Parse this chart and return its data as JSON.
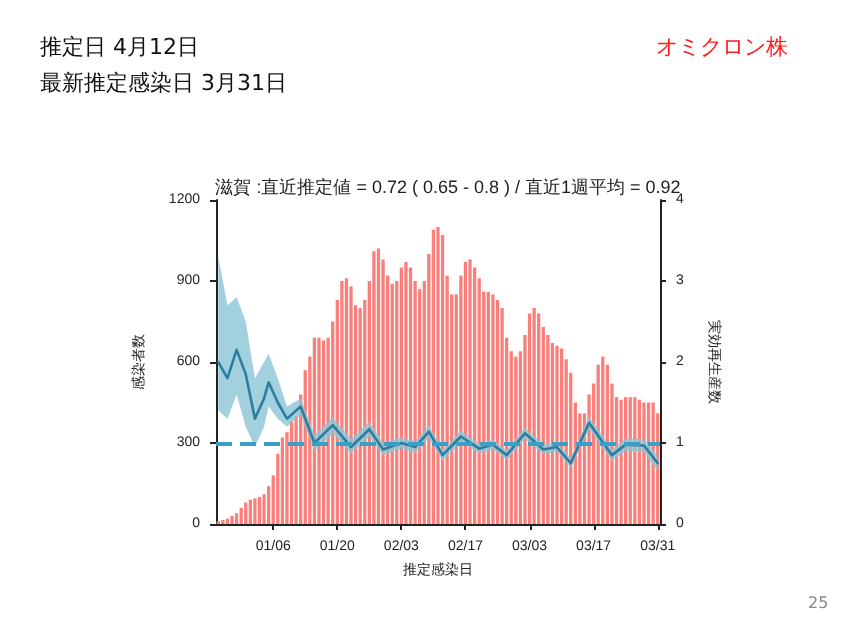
{
  "chart_data": {
    "type": "bar",
    "title": "滋賀 :直近推定値 = 0.72 ( 0.65 - 0.8 ) / 直近1週平均 = 0.92",
    "annotations": [
      "推定日  4月12日",
      "最新推定感染日  3月31日",
      "オミクロン株",
      "25"
    ],
    "xlabel": "推定感染日",
    "ylabel": "感染者数",
    "y2label": "実効再生産数",
    "categories": [
      null,
      null,
      null,
      null,
      null,
      null,
      null,
      null,
      null,
      null,
      null,
      null,
      "01/06",
      null,
      null,
      null,
      null,
      null,
      null,
      null,
      null,
      null,
      null,
      null,
      null,
      null,
      "01/20",
      null,
      null,
      null,
      null,
      null,
      null,
      null,
      null,
      null,
      null,
      null,
      null,
      null,
      "02/03",
      null,
      null,
      null,
      null,
      null,
      null,
      null,
      null,
      null,
      null,
      null,
      null,
      null,
      "02/17",
      null,
      null,
      null,
      null,
      null,
      null,
      null,
      null,
      null,
      null,
      null,
      null,
      null,
      "03/03",
      null,
      null,
      null,
      null,
      null,
      null,
      null,
      null,
      null,
      null,
      null,
      null,
      null,
      "03/17",
      null,
      null,
      null,
      null,
      null,
      null,
      null,
      null,
      null,
      null,
      null,
      null,
      null,
      "03/31"
    ],
    "series": [
      {
        "color": "#fa7f7a",
        "values": [
          10,
          15,
          20,
          30,
          40,
          60,
          80,
          90,
          95,
          100,
          110,
          140,
          180,
          260,
          320,
          340,
          380,
          400,
          480,
          570,
          620,
          690,
          690,
          680,
          690,
          750,
          830,
          900,
          910,
          880,
          810,
          800,
          830,
          900,
          1010,
          1020,
          980,
          920,
          890,
          900,
          950,
          970,
          950,
          900,
          870,
          900,
          1000,
          1090,
          1100,
          1070,
          920,
          850,
          850,
          920,
          970,
          980,
          950,
          910,
          860,
          860,
          850,
          830,
          800,
          690,
          640,
          620,
          640,
          700,
          780,
          800,
          780,
          730,
          700,
          670,
          660,
          650,
          610,
          560,
          450,
          410,
          410,
          480,
          520,
          590,
          620,
          590,
          520,
          470,
          460,
          470,
          470,
          470,
          460,
          450,
          450,
          450,
          410
        ]
      },
      {
        "type": "line",
        "axis": "y2",
        "color": "#2a7fa0",
        "values": [
          2.0,
          null,
          1.8,
          null,
          2.15,
          null,
          1.85,
          null,
          1.3,
          null,
          1.55,
          1.75,
          null,
          1.5,
          null,
          1.3,
          null,
          null,
          1.45,
          null,
          null,
          1.0,
          null,
          null,
          null,
          1.22,
          null,
          null,
          null,
          0.95,
          null,
          null,
          null,
          1.17,
          null,
          null,
          0.92,
          null,
          null,
          null,
          1.0,
          null,
          null,
          0.95,
          null,
          null,
          1.14,
          null,
          null,
          0.85,
          null,
          null,
          null,
          1.08,
          null,
          null,
          null,
          0.93,
          null,
          null,
          0.98,
          null,
          null,
          0.85,
          null,
          null,
          null,
          1.12,
          null,
          null,
          null,
          0.92,
          null,
          null,
          0.95,
          null,
          null,
          0.75,
          null,
          null,
          null,
          1.25,
          null,
          null,
          null,
          null,
          0.85,
          null,
          null,
          0.98,
          null,
          null,
          null,
          0.97,
          null,
          null,
          0.75
        ],
        "lower": [
          1.4,
          null,
          1.3,
          null,
          1.6,
          null,
          1.2,
          null,
          0.95,
          null,
          1.2,
          1.45,
          null,
          1.3,
          null,
          1.2,
          null,
          null,
          1.35,
          null,
          null,
          0.9,
          null,
          null,
          null,
          1.12,
          null,
          null,
          null,
          0.87,
          null,
          null,
          null,
          1.08,
          null,
          null,
          0.85,
          null,
          null,
          null,
          0.93,
          null,
          null,
          0.88,
          null,
          null,
          1.06,
          null,
          null,
          0.78,
          null,
          null,
          null,
          1.01,
          null,
          null,
          null,
          0.87,
          null,
          null,
          0.92,
          null,
          null,
          0.79,
          null,
          null,
          null,
          1.05,
          null,
          null,
          null,
          0.86,
          null,
          null,
          0.89,
          null,
          null,
          0.69,
          null,
          null,
          null,
          1.17,
          null,
          null,
          null,
          null,
          0.78,
          null,
          null,
          0.9,
          null,
          null,
          null,
          0.89,
          null,
          null,
          0.65
        ],
        "upper": [
          3.3,
          null,
          2.7,
          null,
          2.8,
          null,
          2.5,
          null,
          1.8,
          null,
          2.0,
          2.1,
          null,
          1.8,
          null,
          1.45,
          null,
          null,
          1.55,
          null,
          null,
          1.1,
          null,
          null,
          null,
          1.32,
          null,
          null,
          null,
          1.05,
          null,
          null,
          null,
          1.26,
          null,
          null,
          1.0,
          null,
          null,
          null,
          1.07,
          null,
          null,
          1.02,
          null,
          null,
          1.22,
          null,
          null,
          0.92,
          null,
          null,
          null,
          1.15,
          null,
          null,
          null,
          0.99,
          null,
          null,
          1.04,
          null,
          null,
          0.91,
          null,
          null,
          null,
          1.19,
          null,
          null,
          null,
          0.98,
          null,
          null,
          1.01,
          null,
          null,
          0.81,
          null,
          null,
          null,
          1.33,
          null,
          null,
          null,
          null,
          0.92,
          null,
          null,
          1.06,
          null,
          null,
          null,
          1.05,
          null,
          null,
          0.85
        ]
      }
    ],
    "ylim": [
      0,
      1200
    ],
    "yticks": [
      0,
      300,
      600,
      900,
      1200
    ],
    "y2lim": [
      0,
      4
    ],
    "y2ticks": [
      0,
      1,
      2,
      3,
      4
    ],
    "ref_lines": [
      {
        "axis": "y2",
        "value": 1,
        "color": "#3aa0c8",
        "line_style": "dashed"
      }
    ],
    "marker": "none",
    "grid": false
  }
}
